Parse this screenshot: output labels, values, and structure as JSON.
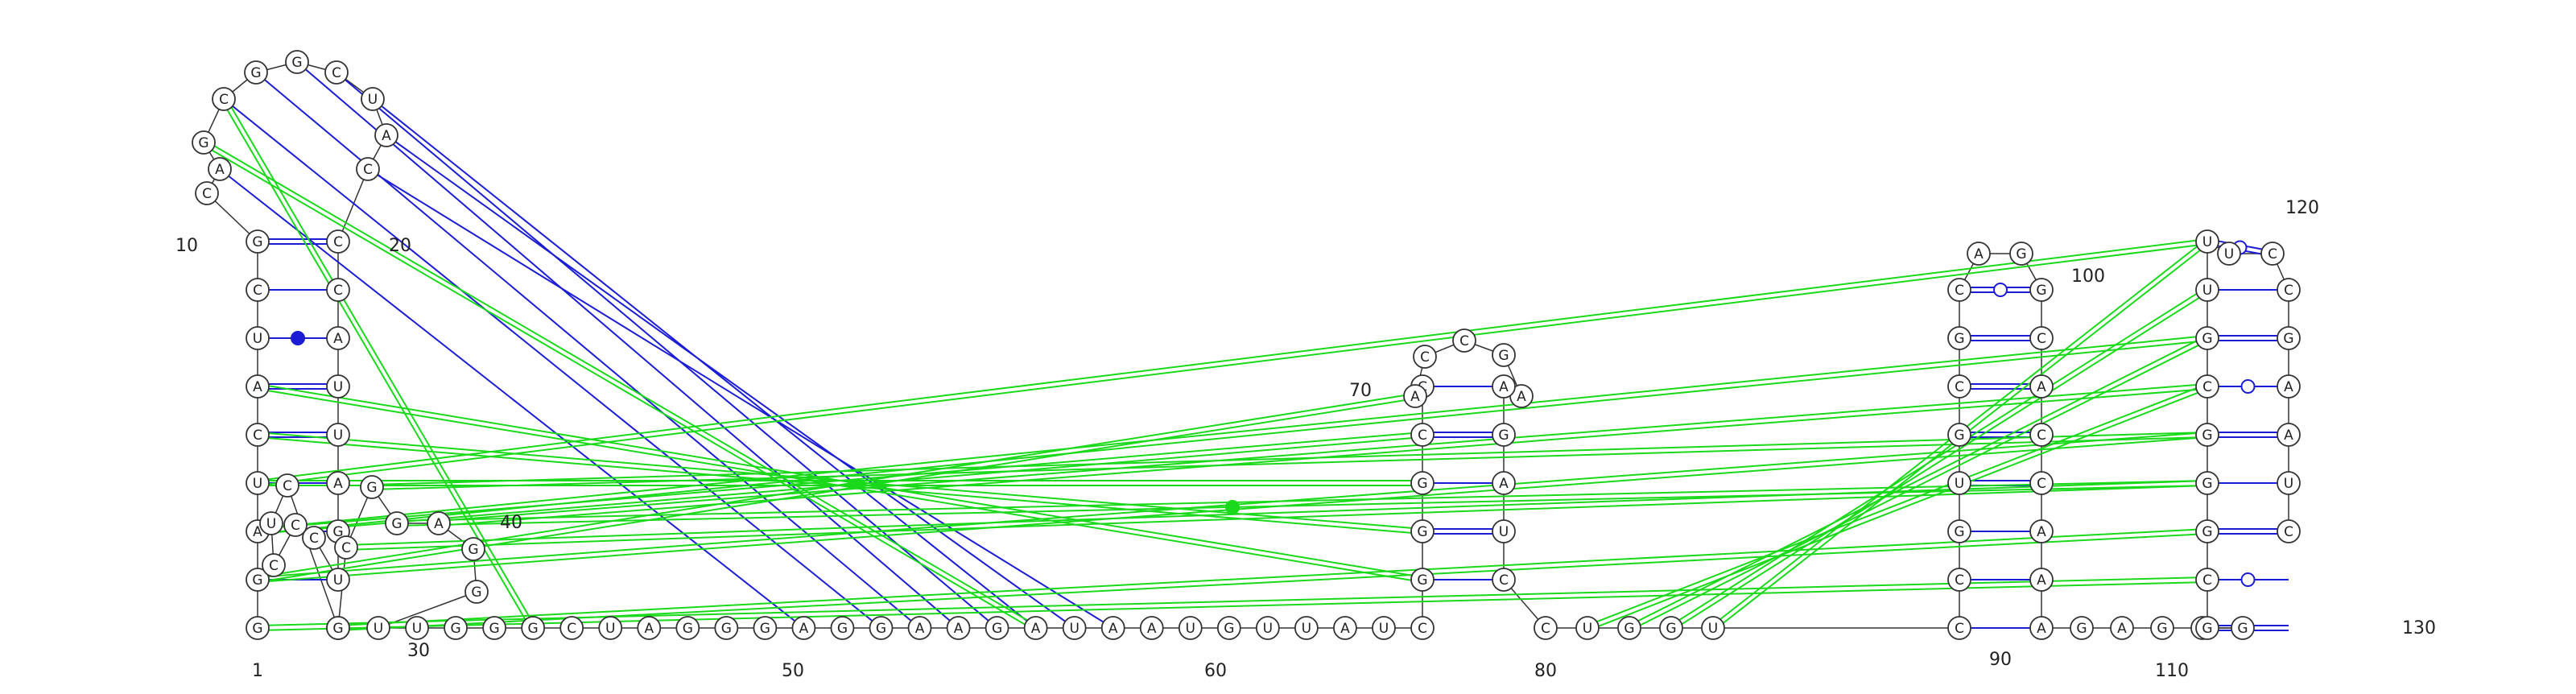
{
  "sequence": "GGAUCAUCGCAGCGGCUACCCAUUAGUCCCUCGGCGGAGGUUGGGCUAGGGAGGAAGAUAAUGUUAUCGGGCCACCGAAGAUCCUGGUCCGUGCGCAGGCACCAAAGAGUGGCGGGCGUUUCCGAAUC",
  "numbering": [
    "1",
    "10",
    "20",
    "30",
    "40",
    "50",
    "60",
    "70",
    "80",
    "90",
    "100",
    "110",
    "120",
    "130"
  ],
  "colors": {
    "canonical": "#1c1cd4",
    "noncanonical": "#1ad91a",
    "nucleotide_stroke": "#333333",
    "backbone": "#333333"
  },
  "legend": []
}
